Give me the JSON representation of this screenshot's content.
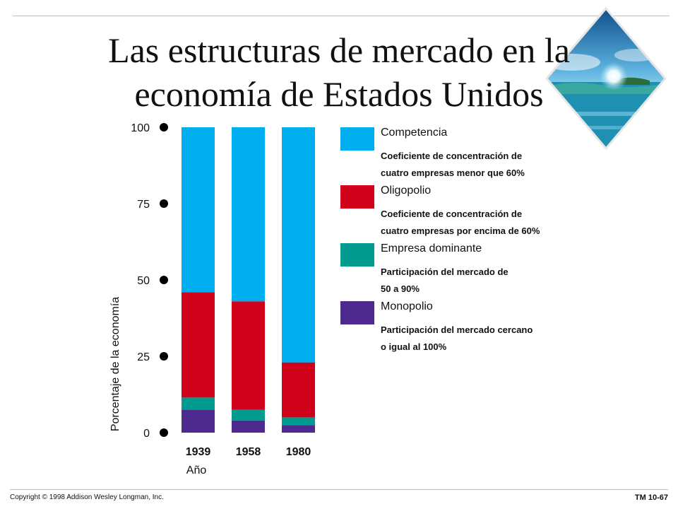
{
  "slide": {
    "title_line1": "Las estructuras de mercado en la",
    "title_line2": "economía de Estados Unidos",
    "copyright": "Copyright © 1998 Addison Wesley Longman, Inc.",
    "slide_number": "TM 10-67"
  },
  "colors": {
    "competencia": "#00AEEF",
    "oligopolio": "#D0021B",
    "empresa_dominante": "#009A8E",
    "monopolio": "#4E2A8E"
  },
  "legend": [
    {
      "name": "Competencia",
      "desc_line1": "Coeficiente de concentración de",
      "desc_line2": "cuatro empresas menor que 60%",
      "color": "#00AEEF"
    },
    {
      "name": "Oligopolio",
      "desc_line1": "Coeficiente de concentración de",
      "desc_line2": "cuatro empresas por encima de 60%",
      "color": "#D0021B"
    },
    {
      "name": "Empresa dominante",
      "desc_line1": "Participación del mercado de",
      "desc_line2": "50 a 90%",
      "color": "#009A8E"
    },
    {
      "name": "Monopolio",
      "desc_line1": "Participación del mercado cercano",
      "desc_line2": "o igual al 100%",
      "color": "#4E2A8E"
    }
  ],
  "chart_data": {
    "type": "bar",
    "stacked": true,
    "categories": [
      "1939",
      "1958",
      "1980"
    ],
    "series": [
      {
        "name": "Monopolio",
        "values": [
          7.5,
          4,
          2.5
        ],
        "color": "#4E2A8E"
      },
      {
        "name": "Empresa dominante",
        "values": [
          4,
          3.5,
          2.5
        ],
        "color": "#009A8E"
      },
      {
        "name": "Oligopolio",
        "values": [
          34.5,
          35.5,
          18
        ],
        "color": "#D0021B"
      },
      {
        "name": "Competencia",
        "values": [
          54,
          57,
          77
        ],
        "color": "#00AEEF"
      }
    ],
    "xlabel": "Año",
    "ylabel": "Porcentaje de la economía",
    "yticks": [
      "0",
      "25",
      "50",
      "75",
      "100"
    ],
    "ylim": [
      0,
      100
    ],
    "grid": false,
    "legend_position": "right"
  }
}
